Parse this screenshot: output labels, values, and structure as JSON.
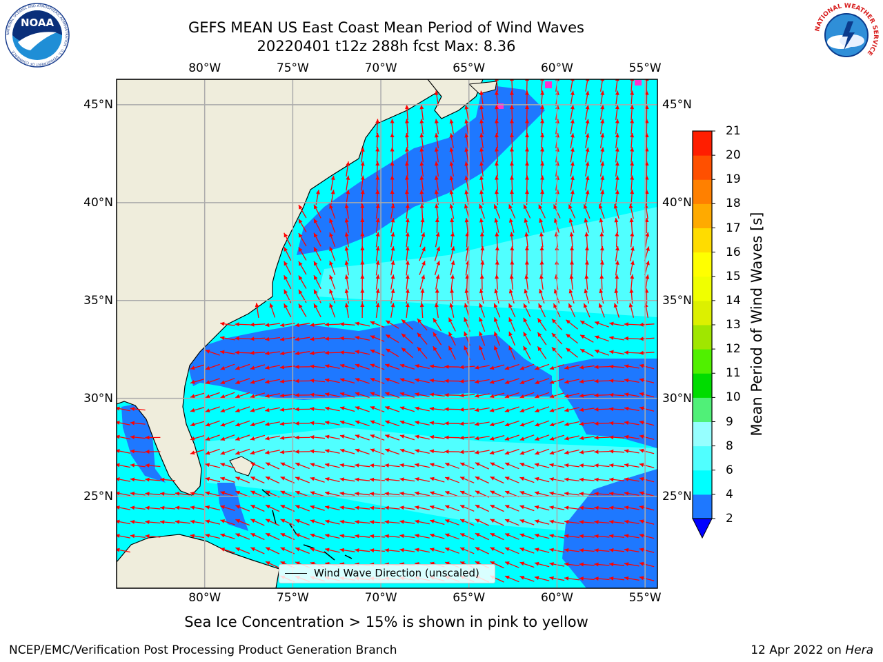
{
  "header": {
    "title_line1": "GEFS MEAN US East Coast Mean Period of Wind Waves",
    "title_line2": "20220401 t12z 288h fcst   Max: 8.36"
  },
  "logos": {
    "noaa_text": "NOAA",
    "noaa_ring_text": "NATIONAL OCEANIC AND ATMOSPHERIC ADMINISTRATION · U.S. DEPARTMENT OF COMMERCE",
    "nws_ring_text": "NATIONAL WEATHER SERVICE"
  },
  "map": {
    "lon_range": [
      -85,
      -54.3
    ],
    "lat_range": [
      20.3,
      46.3
    ],
    "lon_ticks": [
      "80°W",
      "75°W",
      "70°W",
      "65°W",
      "60°W",
      "55°W"
    ],
    "lat_ticks": [
      "45°N",
      "40°N",
      "35°N",
      "30°N",
      "25°N"
    ],
    "land_color": "#efeddc",
    "grid_color": "#aaaaaa",
    "vector_color": "#ff0000",
    "legend_label": "Wind Wave Direction (unscaled)"
  },
  "colorbar": {
    "title": "Mean Period of Wind Waves [s]",
    "levels": [
      "2",
      "4",
      "6",
      "8",
      "9",
      "10",
      "11",
      "12",
      "13",
      "14",
      "15",
      "16",
      "17",
      "18",
      "19",
      "20",
      "21"
    ],
    "colors": [
      "#0000ff",
      "#1e78ff",
      "#00ffff",
      "#50ffff",
      "#96ffff",
      "#50f078",
      "#00dc00",
      "#50f000",
      "#a0e600",
      "#dcf000",
      "#f0ff00",
      "#ffff00",
      "#ffdc00",
      "#ffaa00",
      "#ff8000",
      "#ff5000",
      "#ff1e00",
      "#ff0000"
    ]
  },
  "footer": {
    "sea_ice_note": "Sea Ice Concentration > 15% is shown in pink to yellow",
    "left": "NCEP/EMC/Verification Post Processing Product Generation Branch",
    "right_date": "12 Apr 2022 on ",
    "right_host": "Hera"
  }
}
